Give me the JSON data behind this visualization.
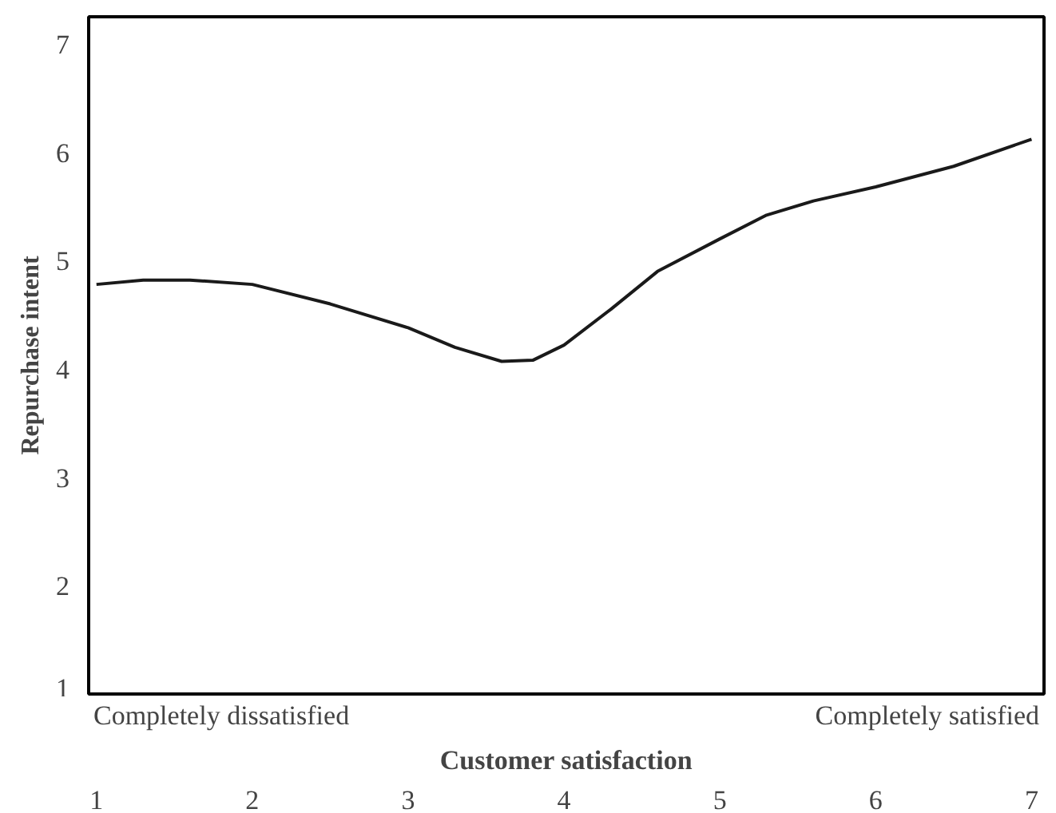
{
  "chart_data": {
    "type": "line",
    "xlabel": "Customer satisfaction",
    "ylabel": "Repurchase intent",
    "annotations": [
      "Completely dissatisfied",
      "Completely satisfied"
    ],
    "x": [
      1,
      1.3,
      1.6,
      2,
      2.5,
      3,
      3.3,
      3.6,
      3.8,
      4,
      4.3,
      4.6,
      5,
      5.3,
      5.6,
      6,
      6.5,
      7
    ],
    "series": [
      {
        "color": "#1a1a1a",
        "values": [
          4.78,
          4.82,
          4.82,
          4.78,
          4.6,
          4.38,
          4.2,
          4.07,
          4.08,
          4.22,
          4.55,
          4.9,
          5.2,
          5.42,
          5.55,
          5.68,
          5.87,
          6.12
        ]
      }
    ],
    "xlim": [
      0.95,
      7.08
    ],
    "ylim": [
      1,
      7.25
    ],
    "xticks": [
      1,
      2,
      3,
      4,
      5,
      6,
      7
    ],
    "yticks": [
      1,
      2,
      3,
      4,
      5,
      6,
      7
    ],
    "grid": false,
    "marker": "none",
    "line_style": "solid"
  }
}
